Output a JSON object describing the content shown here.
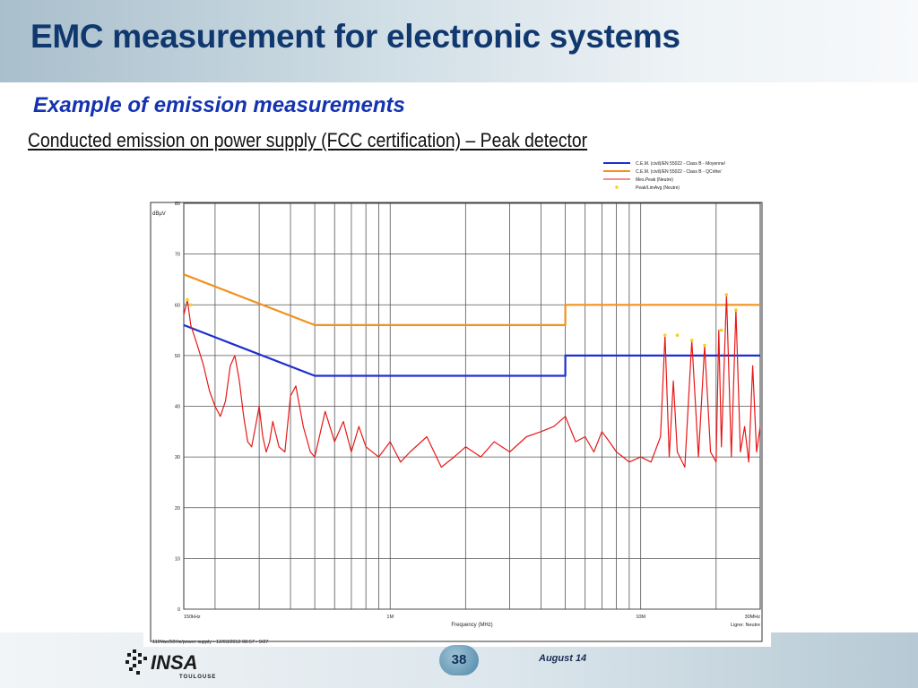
{
  "slide": {
    "title": "EMC measurement for electronic systems",
    "subtitle": "Example of emission measurements",
    "caption": "Conducted emission on power supply (FCC certification) – Peak detector",
    "page_number": "38",
    "date": "August 14",
    "logo_text": "INSA",
    "logo_subtext": "TOULOUSE"
  },
  "colors": {
    "title": "#10386e",
    "subtitle": "#1533b0",
    "limit_average": "#1d2fd0",
    "limit_quasipeak": "#f0921e",
    "measured_peak": "#e81818",
    "peak_markers": "#f5d21a"
  },
  "chart_data": {
    "type": "line",
    "ylabel": "dBµV",
    "xlabel": "Frequency (MHz)",
    "x_scale": "log",
    "xlim": [
      0.15,
      30
    ],
    "ylim": [
      0,
      80
    ],
    "y_ticks": [
      0,
      10,
      20,
      30,
      40,
      50,
      60,
      70,
      80
    ],
    "y_tick_labels": [
      "0",
      "10",
      "20",
      "30",
      "40",
      "50",
      "60",
      "70",
      "80"
    ],
    "x_tick_labels": [
      {
        "x": 0.15,
        "label": "150kHz"
      },
      {
        "x": 1,
        "label": "1M"
      },
      {
        "x": 10,
        "label": "10M"
      },
      {
        "x": 30,
        "label": "30MHz"
      }
    ],
    "grid": true,
    "footer_left": "110Vac/50Hz/power supply - 12/03/2012 08:57 - 9/27",
    "footer_right": "Ligne: Neutre",
    "legend_position": "top-right",
    "series": [
      {
        "name": "C.E.M. (civil)/EN 55022 - Class B - Moyenne/",
        "style": "line",
        "color": "#1d2fd0",
        "x": [
          0.15,
          0.5,
          0.5,
          5,
          5,
          30
        ],
        "y": [
          56,
          46,
          46,
          46,
          50,
          50
        ]
      },
      {
        "name": "C.E.M. (civil)/EN 55022 - Class B - QCrête/",
        "style": "line",
        "color": "#f0921e",
        "x": [
          0.15,
          0.5,
          0.5,
          5,
          5,
          30
        ],
        "y": [
          66,
          56,
          56,
          56,
          60,
          60
        ]
      },
      {
        "name": "Mes.Peak (Neutre)",
        "style": "line",
        "color": "#e81818",
        "x": [
          0.15,
          0.155,
          0.16,
          0.17,
          0.18,
          0.19,
          0.2,
          0.21,
          0.22,
          0.23,
          0.24,
          0.25,
          0.26,
          0.27,
          0.28,
          0.29,
          0.3,
          0.31,
          0.32,
          0.33,
          0.34,
          0.36,
          0.38,
          0.4,
          0.42,
          0.45,
          0.48,
          0.5,
          0.55,
          0.6,
          0.65,
          0.7,
          0.75,
          0.8,
          0.9,
          1,
          1.1,
          1.2,
          1.4,
          1.6,
          1.8,
          2,
          2.3,
          2.6,
          3,
          3.5,
          4,
          4.5,
          5,
          5.5,
          6,
          6.5,
          7,
          7.5,
          8,
          8.5,
          9,
          10,
          11,
          12,
          12.5,
          13,
          13.5,
          14,
          15,
          16,
          17,
          18,
          19,
          20,
          20.5,
          21,
          22,
          23,
          24,
          25,
          26,
          27,
          28,
          29,
          30
        ],
        "y": [
          58,
          61,
          56,
          52,
          48,
          43,
          40,
          38,
          41,
          48,
          50,
          45,
          38,
          33,
          32,
          36,
          40,
          34,
          31,
          33,
          37,
          32,
          31,
          42,
          44,
          36,
          31,
          30,
          39,
          33,
          37,
          31,
          36,
          32,
          30,
          33,
          29,
          31,
          34,
          28,
          30,
          32,
          30,
          33,
          31,
          34,
          35,
          36,
          38,
          33,
          34,
          31,
          35,
          33,
          31,
          30,
          29,
          30,
          29,
          34,
          54,
          30,
          45,
          31,
          28,
          53,
          30,
          52,
          31,
          29,
          55,
          32,
          62,
          30,
          59,
          31,
          36,
          29,
          48,
          31,
          36
        ]
      },
      {
        "name": "Peak/LimAvg (Neutre)",
        "style": "markers",
        "color": "#f5d21a",
        "x": [
          0.155,
          0.16,
          12.5,
          14,
          16,
          18,
          21,
          22,
          24
        ],
        "y": [
          61,
          60,
          54,
          54,
          53,
          52,
          55,
          62,
          59
        ]
      }
    ]
  }
}
